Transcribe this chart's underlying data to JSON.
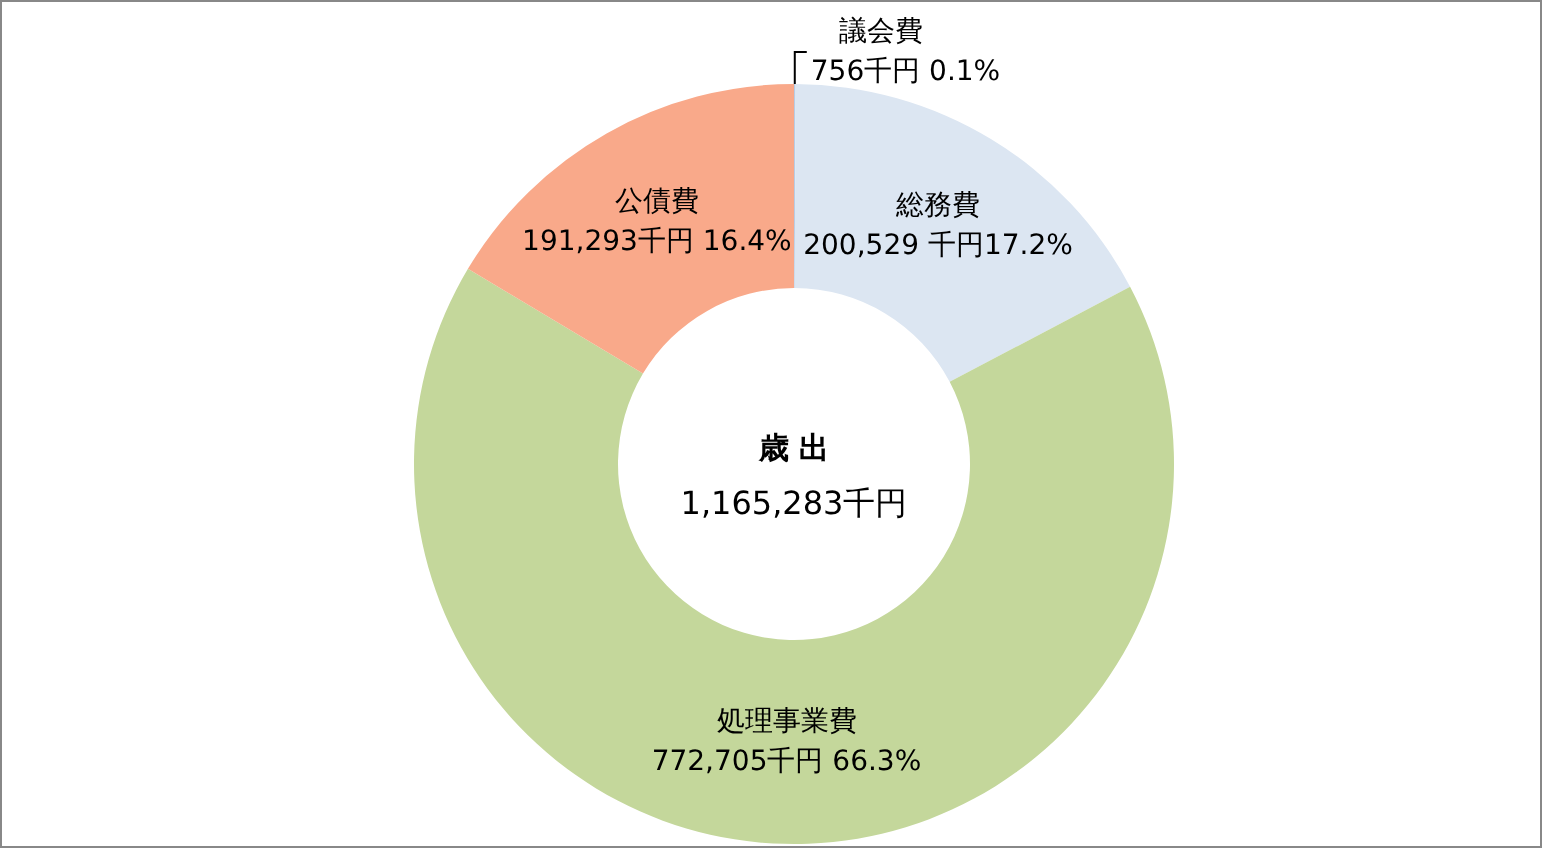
{
  "chart_data": {
    "type": "donut",
    "title": "歳 出",
    "subtitle": "1,165,283千円",
    "categories": [
      "議会費",
      "総務費",
      "処理事業費",
      "公債費"
    ],
    "values": [
      756,
      200529,
      772705,
      191293
    ],
    "colors": [
      "#b8cce4",
      "#dce6f2",
      "#c4d79b",
      "#f9a98a"
    ],
    "value_labels": [
      "756千円 0.1%",
      "200,529 千円17.2%",
      "772,705千円 66.3%",
      "191,293千円 16.4%"
    ]
  }
}
